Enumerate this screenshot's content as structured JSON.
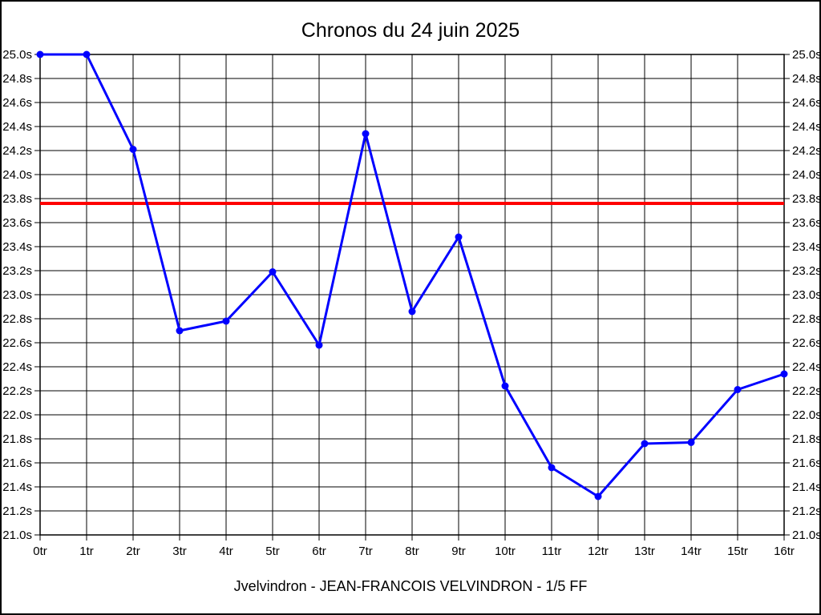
{
  "window": {
    "background_color": "#ffffff",
    "border_color": "#000000"
  },
  "header": {
    "title": "Chronos du 24 juin 2025"
  },
  "footer": {
    "caption": "Jvelvindron - JEAN-FRANCOIS VELVINDRON - 1/5 FF"
  },
  "chart_data": {
    "type": "line",
    "title": "Chronos du 24 juin 2025",
    "categories": [
      "0tr",
      "1tr",
      "2tr",
      "3tr",
      "4tr",
      "5tr",
      "6tr",
      "7tr",
      "8tr",
      "9tr",
      "10tr",
      "11tr",
      "12tr",
      "13tr",
      "14tr",
      "15tr",
      "16tr"
    ],
    "values": [
      25.0,
      25.0,
      24.21,
      22.7,
      22.78,
      23.19,
      22.58,
      24.34,
      22.86,
      23.48,
      22.24,
      21.56,
      21.32,
      21.76,
      21.77,
      22.21,
      22.34
    ],
    "unit": "s",
    "xlabel": "",
    "ylabel": "",
    "ylim": [
      21.0,
      25.0
    ],
    "y_tick_step": 0.2,
    "y_tick_labels": [
      "25.0s",
      "24.8s",
      "24.6s",
      "24.4s",
      "24.2s",
      "24.0s",
      "23.8s",
      "23.6s",
      "23.4s",
      "23.2s",
      "23.0s",
      "22.8s",
      "22.6s",
      "22.4s",
      "22.2s",
      "22.0s",
      "21.8s",
      "21.6s",
      "21.4s",
      "21.2s",
      "21.0s"
    ],
    "grid": true,
    "axis_labels_both_sides": true,
    "legend": "none",
    "series_color": "#0000ff",
    "reference_line": {
      "value": 23.76,
      "color": "#ff0000"
    }
  }
}
